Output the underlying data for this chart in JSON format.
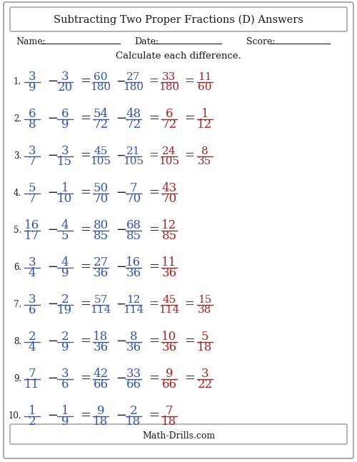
{
  "title": "Subtracting Two Proper Fractions (D) Answers",
  "subtitle": "Calculate each difference.",
  "background_color": "#ffffff",
  "border_color": "#999999",
  "text_color_black": "#1a1a1a",
  "text_color_blue": "#3355aa",
  "text_color_red": "#aa2222",
  "problems": [
    {
      "num": "1.",
      "n1": "3",
      "d1": "9",
      "n2": "3",
      "d2": "20",
      "n3": "60",
      "d3": "180",
      "n4": "27",
      "d4": "180",
      "n5": "33",
      "d5": "180",
      "n6": "11",
      "d6": "60",
      "simplified": true
    },
    {
      "num": "2.",
      "n1": "6",
      "d1": "8",
      "n2": "6",
      "d2": "9",
      "n3": "54",
      "d3": "72",
      "n4": "48",
      "d4": "72",
      "n5": "6",
      "d5": "72",
      "n6": "1",
      "d6": "12",
      "simplified": true
    },
    {
      "num": "3.",
      "n1": "3",
      "d1": "7",
      "n2": "3",
      "d2": "15",
      "n3": "45",
      "d3": "105",
      "n4": "21",
      "d4": "105",
      "n5": "24",
      "d5": "105",
      "n6": "8",
      "d6": "35",
      "simplified": true
    },
    {
      "num": "4.",
      "n1": "5",
      "d1": "7",
      "n2": "1",
      "d2": "10",
      "n3": "50",
      "d3": "70",
      "n4": "7",
      "d4": "70",
      "n5": "43",
      "d5": "70",
      "n6": "",
      "d6": "",
      "simplified": false
    },
    {
      "num": "5.",
      "n1": "16",
      "d1": "17",
      "n2": "4",
      "d2": "5",
      "n3": "80",
      "d3": "85",
      "n4": "68",
      "d4": "85",
      "n5": "12",
      "d5": "85",
      "n6": "",
      "d6": "",
      "simplified": false
    },
    {
      "num": "6.",
      "n1": "3",
      "d1": "4",
      "n2": "4",
      "d2": "9",
      "n3": "27",
      "d3": "36",
      "n4": "16",
      "d4": "36",
      "n5": "11",
      "d5": "36",
      "n6": "",
      "d6": "",
      "simplified": false
    },
    {
      "num": "7.",
      "n1": "3",
      "d1": "6",
      "n2": "2",
      "d2": "19",
      "n3": "57",
      "d3": "114",
      "n4": "12",
      "d4": "114",
      "n5": "45",
      "d5": "114",
      "n6": "15",
      "d6": "38",
      "simplified": true
    },
    {
      "num": "8.",
      "n1": "2",
      "d1": "4",
      "n2": "2",
      "d2": "9",
      "n3": "18",
      "d3": "36",
      "n4": "8",
      "d4": "36",
      "n5": "10",
      "d5": "36",
      "n6": "5",
      "d6": "18",
      "simplified": true
    },
    {
      "num": "9.",
      "n1": "7",
      "d1": "11",
      "n2": "3",
      "d2": "6",
      "n3": "42",
      "d3": "66",
      "n4": "33",
      "d4": "66",
      "n5": "9",
      "d5": "66",
      "n6": "3",
      "d6": "22",
      "simplified": true
    },
    {
      "num": "10.",
      "n1": "1",
      "d1": "2",
      "n2": "1",
      "d2": "9",
      "n3": "9",
      "d3": "18",
      "n4": "2",
      "d4": "18",
      "n5": "7",
      "d5": "18",
      "n6": "",
      "d6": "",
      "simplified": false
    }
  ],
  "footer": "Math-Drills.com",
  "fig_width": 5.0,
  "fig_height": 6.47,
  "dpi": 100
}
